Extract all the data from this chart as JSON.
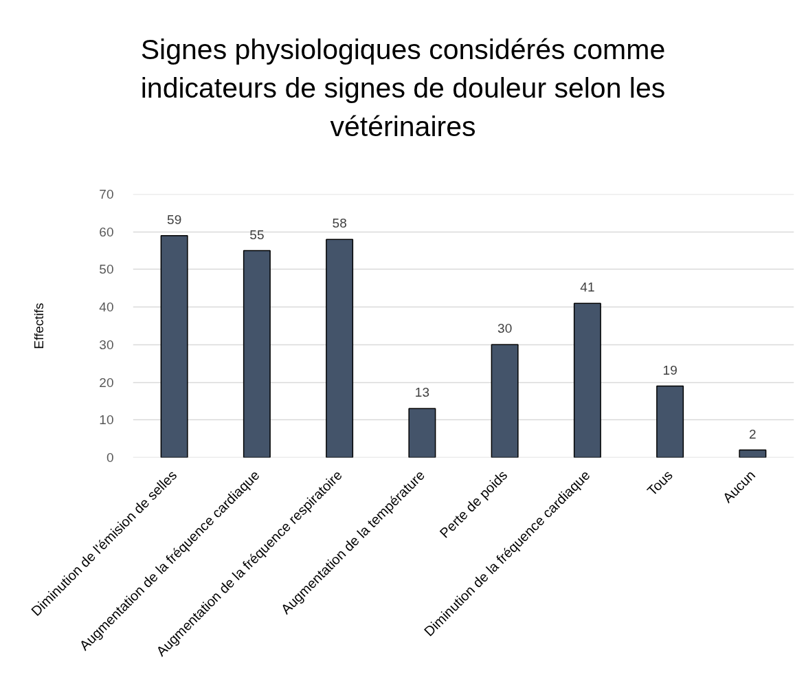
{
  "chart_data": {
    "type": "bar",
    "title": "Signes physiologiques considérés comme indicateurs de signes de douleur selon les vétérinaires",
    "ylabel": "Effectifs",
    "categories": [
      "Diminution de l'émision de selles",
      "Augmentation de la fréquence cardiaque",
      "Augmentation de la fréquence respiratoire",
      "Augmentation de la température",
      "Perte de poids",
      "Diminution de la fréquence cardiaque",
      "Tous",
      "Aucun"
    ],
    "values": [
      59,
      55,
      58,
      13,
      30,
      41,
      19,
      2
    ],
    "color": "#44546a",
    "ylim": [
      0,
      70
    ],
    "yticks": [
      0,
      10,
      20,
      30,
      40,
      50,
      60,
      70
    ],
    "grid": "y",
    "data_labels": true
  }
}
